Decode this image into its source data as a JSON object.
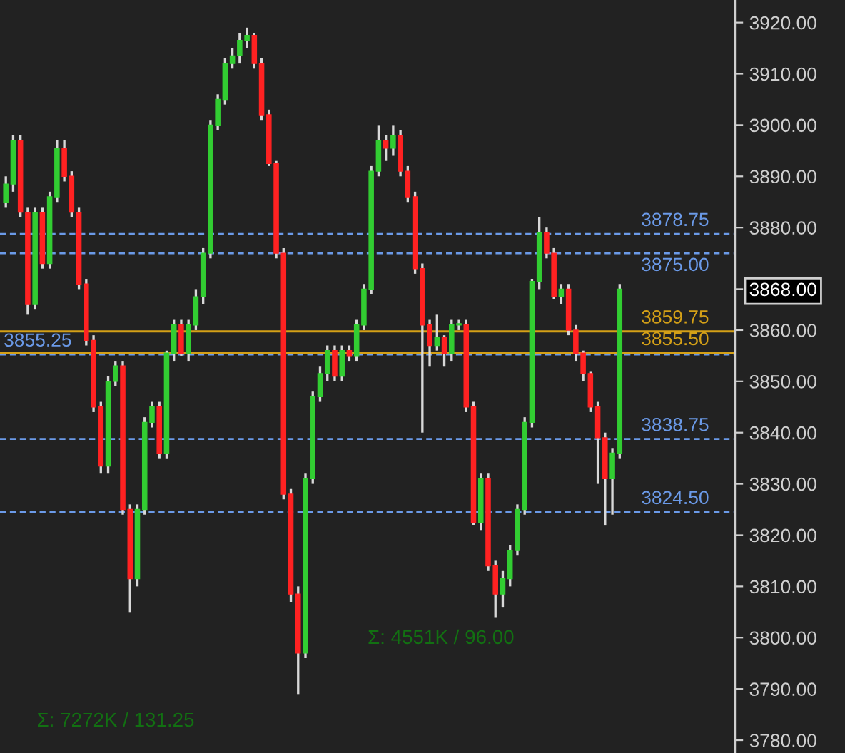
{
  "chart_data": {
    "type": "candlestick",
    "categories": [
      null,
      null,
      null,
      null,
      null,
      null,
      null,
      null,
      null,
      null,
      null,
      null,
      null,
      null,
      null,
      null,
      null,
      null,
      null,
      null,
      null,
      null,
      null,
      null,
      null,
      null,
      null,
      null,
      null,
      null,
      null,
      null,
      null,
      null,
      null,
      null,
      null,
      null,
      null,
      null,
      null,
      null,
      null,
      null,
      null,
      null,
      null,
      null,
      null,
      null,
      null,
      null,
      null,
      null,
      null,
      null,
      null,
      null,
      null,
      null,
      null,
      null,
      null,
      null,
      null,
      null,
      null,
      null,
      null,
      null,
      null,
      null,
      null,
      null,
      null,
      null,
      null,
      null,
      null,
      null,
      null,
      null,
      null,
      null,
      null,
      null,
      null,
      null,
      null,
      null,
      null,
      null,
      null,
      null,
      null,
      null,
      null,
      null,
      null,
      null
    ],
    "ohlc": [
      [
        3885,
        3890,
        3884,
        3888.5
      ],
      [
        3888.5,
        3898,
        3887,
        3897
      ],
      [
        3897,
        3898,
        3882,
        3883
      ],
      [
        3883,
        3884,
        3863,
        3865
      ],
      [
        3865,
        3884,
        3864,
        3883
      ],
      [
        3883,
        3884,
        3872,
        3873
      ],
      [
        3873,
        3887,
        3872,
        3886
      ],
      [
        3886,
        3897,
        3885,
        3895.5
      ],
      [
        3895.5,
        3897,
        3889,
        3890
      ],
      [
        3890,
        3891,
        3882,
        3883
      ],
      [
        3883,
        3884,
        3868,
        3869
      ],
      [
        3869,
        3870,
        3857,
        3858
      ],
      [
        3858,
        3859,
        3844,
        3845
      ],
      [
        3845,
        3846,
        3832,
        3833.5
      ],
      [
        3833.5,
        3851,
        3832,
        3850
      ],
      [
        3850,
        3854,
        3849,
        3853
      ],
      [
        3853,
        3854,
        3824,
        3825
      ],
      [
        3825,
        3826,
        3805,
        3811.5
      ],
      [
        3811.5,
        3826,
        3810,
        3825
      ],
      [
        3825,
        3843,
        3824,
        3842
      ],
      [
        3842,
        3846,
        3841,
        3845
      ],
      [
        3845,
        3846,
        3835,
        3836
      ],
      [
        3836,
        3856,
        3835,
        3855.5
      ],
      [
        3855.5,
        3862,
        3854,
        3861
      ],
      [
        3861,
        3862,
        3855,
        3855.5
      ],
      [
        3855.5,
        3862,
        3854,
        3861
      ],
      [
        3861,
        3868,
        3860,
        3866.5
      ],
      [
        3866.5,
        3876,
        3865,
        3875
      ],
      [
        3875,
        3901,
        3874,
        3900
      ],
      [
        3900,
        3906,
        3899,
        3905
      ],
      [
        3905,
        3913,
        3904,
        3912
      ],
      [
        3912,
        3915,
        3911,
        3913.5
      ],
      [
        3913.5,
        3918,
        3912,
        3916.5
      ],
      [
        3916.5,
        3919,
        3915,
        3917.5
      ],
      [
        3917.5,
        3918,
        3911,
        3912
      ],
      [
        3912,
        3913,
        3901,
        3902
      ],
      [
        3902,
        3903,
        3892,
        3892.5
      ],
      [
        3892.5,
        3893,
        3874,
        3875
      ],
      [
        3875,
        3876,
        3827,
        3828
      ],
      [
        3828,
        3829,
        3807,
        3808.5
      ],
      [
        3808.5,
        3810,
        3789,
        3797
      ],
      [
        3797,
        3832,
        3796,
        3831
      ],
      [
        3831,
        3848,
        3830,
        3847
      ],
      [
        3847,
        3853,
        3846,
        3851.5
      ],
      [
        3851.5,
        3857,
        3850,
        3856
      ],
      [
        3856,
        3857,
        3850,
        3851
      ],
      [
        3851,
        3857,
        3850,
        3856
      ],
      [
        3856,
        3857,
        3854,
        3855
      ],
      [
        3855,
        3862,
        3854,
        3861
      ],
      [
        3861,
        3869,
        3860,
        3868
      ],
      [
        3868,
        3892,
        3867,
        3891
      ],
      [
        3891,
        3900,
        3890,
        3897
      ],
      [
        3897,
        3898,
        3893,
        3895.5
      ],
      [
        3895.5,
        3900,
        3894,
        3898
      ],
      [
        3898,
        3899,
        3890,
        3891
      ],
      [
        3891,
        3892,
        3885,
        3886
      ],
      [
        3886,
        3887,
        3871,
        3872
      ],
      [
        3872,
        3873,
        3840,
        3861
      ],
      [
        3861,
        3862,
        3853,
        3857
      ],
      [
        3857,
        3863,
        3856,
        3858.5
      ],
      [
        3858.5,
        3859,
        3853,
        3855.5
      ],
      [
        3855.5,
        3862,
        3854,
        3861
      ],
      [
        3861,
        3862,
        3860,
        3861
      ],
      [
        3861,
        3862,
        3844,
        3845
      ],
      [
        3845,
        3846,
        3822,
        3822.5
      ],
      [
        3822.5,
        3832,
        3821,
        3831
      ],
      [
        3831,
        3832,
        3813,
        3814
      ],
      [
        3814,
        3815,
        3804,
        3808.5
      ],
      [
        3808.5,
        3813,
        3806,
        3811.5
      ],
      [
        3811.5,
        3818,
        3810,
        3817
      ],
      [
        3817,
        3826,
        3816,
        3825
      ],
      [
        3825,
        3843,
        3824,
        3842
      ],
      [
        3842,
        3870,
        3841,
        3869.5
      ],
      [
        3869.5,
        3882,
        3868,
        3879
      ],
      [
        3879,
        3880,
        3874,
        3875
      ],
      [
        3875,
        3876,
        3866,
        3866.5
      ],
      [
        3866.5,
        3869,
        3865,
        3868
      ],
      [
        3868,
        3869,
        3859,
        3860
      ],
      [
        3860,
        3861,
        3854,
        3855.5
      ],
      [
        3855.5,
        3856,
        3850,
        3851.5
      ],
      [
        3851.5,
        3852,
        3844,
        3845
      ],
      [
        3845,
        3846,
        3830,
        3839
      ],
      [
        3839,
        3840,
        3822,
        3831
      ],
      [
        3831,
        3837,
        3824,
        3836
      ],
      [
        3836,
        3869,
        3835,
        3868
      ],
      null,
      null,
      null,
      null,
      null,
      null,
      null,
      null,
      null,
      null,
      null,
      null,
      null,
      null,
      null
    ],
    "ylim": [
      3777.5,
      3924.4
    ],
    "yticks": [
      {
        "value": 3780,
        "label": "3780.00"
      },
      {
        "value": 3790,
        "label": "3790.00"
      },
      {
        "value": 3800,
        "label": "3800.00"
      },
      {
        "value": 3810,
        "label": "3810.00"
      },
      {
        "value": 3820,
        "label": "3820.00"
      },
      {
        "value": 3830,
        "label": "3830.00"
      },
      {
        "value": 3840,
        "label": "3840.00"
      },
      {
        "value": 3850,
        "label": "3850.00"
      },
      {
        "value": 3860,
        "label": "3860.00"
      },
      {
        "value": 3868,
        "label": "3868.00"
      },
      {
        "value": 3880,
        "label": "3880.00"
      },
      {
        "value": 3890,
        "label": "3890.00"
      },
      {
        "value": 3900,
        "label": "3900.00"
      },
      {
        "value": 3910,
        "label": "3910.00"
      },
      {
        "value": 3920,
        "label": "3920.00"
      }
    ],
    "ref_lines": [
      {
        "axis": "y",
        "value": 3875,
        "label": "3875.00",
        "color": "#6b9ae8",
        "line_style": "dashed"
      },
      {
        "axis": "y",
        "value": 3855.25,
        "label": "3855.25",
        "color": "#6b9ae8",
        "line_style": "dashed"
      },
      {
        "axis": "y",
        "value": 3855.5,
        "label": "3855.50",
        "color": "#d4a017",
        "line_style": "solid"
      },
      {
        "axis": "y",
        "value": 3824.5,
        "label": "3824.50",
        "color": "#6b9ae8",
        "line_style": "dashed"
      },
      {
        "axis": "y",
        "value": 3878.75,
        "label": "3878.75",
        "color": "#6b9ae8",
        "line_style": "dashed"
      },
      {
        "axis": "y",
        "value": 3859.75,
        "label": "3859.75",
        "color": "#d4a017",
        "line_style": "solid"
      },
      {
        "axis": "y",
        "value": 3838.75,
        "label": "3838.75",
        "color": "#6b9ae8",
        "line_style": "dashed"
      }
    ],
    "annotations": [
      "Σ: 7272K / 131.25",
      "Σ: 4551K / 96.00"
    ]
  }
}
